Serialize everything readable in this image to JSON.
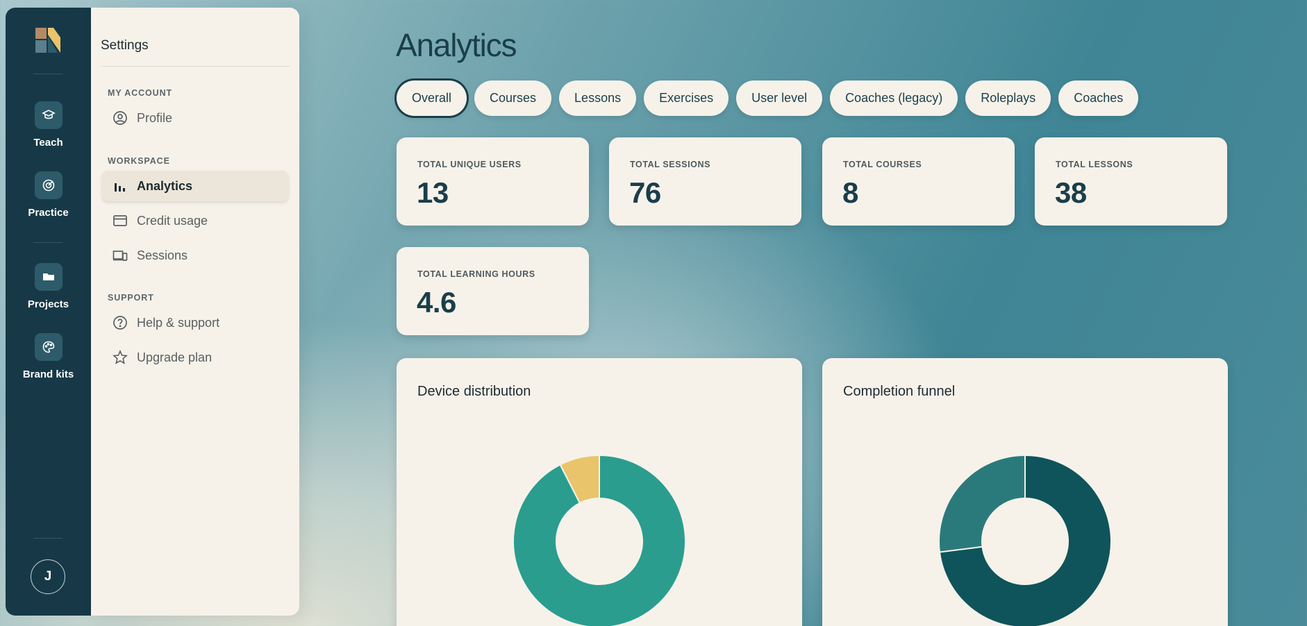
{
  "rail": {
    "items": [
      {
        "label": "Teach",
        "icon": "graduation-cap-icon"
      },
      {
        "label": "Practice",
        "icon": "target-icon"
      },
      {
        "label": "Projects",
        "icon": "folder-icon"
      },
      {
        "label": "Brand kits",
        "icon": "palette-icon"
      }
    ],
    "avatar_initial": "J"
  },
  "settings": {
    "title": "Settings",
    "sections": {
      "my_account": "MY ACCOUNT",
      "workspace": "WORKSPACE",
      "support": "SUPPORT"
    },
    "items": {
      "profile": "Profile",
      "analytics": "Analytics",
      "credit_usage": "Credit usage",
      "sessions": "Sessions",
      "help": "Help & support",
      "upgrade": "Upgrade plan"
    },
    "active": "Analytics"
  },
  "main": {
    "title": "Analytics",
    "tabs": [
      "Overall",
      "Courses",
      "Lessons",
      "Exercises",
      "User level",
      "Coaches (legacy)",
      "Roleplays",
      "Coaches"
    ],
    "active_tab": "Overall",
    "stats": [
      {
        "label": "TOTAL UNIQUE USERS",
        "value": "13"
      },
      {
        "label": "TOTAL SESSIONS",
        "value": "76"
      },
      {
        "label": "TOTAL COURSES",
        "value": "8"
      },
      {
        "label": "TOTAL LESSONS",
        "value": "38"
      },
      {
        "label": "TOTAL LEARNING HOURS",
        "value": "4.6"
      }
    ],
    "cards": {
      "device_title": "Device distribution",
      "funnel_title": "Completion funnel"
    }
  },
  "colors": {
    "rail_bg": "#173947",
    "panel_bg": "#f6f2ea",
    "accent_dark": "#1a3e4a",
    "teal": "#2a9d8f",
    "gold": "#e9c46a",
    "deep_teal": "#0e545a",
    "mid_teal": "#2a7a7c"
  },
  "chart_data": [
    {
      "type": "pie",
      "title": "Device distribution",
      "slices": [
        {
          "value": 92.5,
          "color": "#2a9d8f"
        },
        {
          "value": 7.5,
          "color": "#e9c46a"
        }
      ]
    },
    {
      "type": "pie",
      "title": "Completion funnel",
      "slices": [
        {
          "value": 73,
          "color": "#0e545a"
        },
        {
          "value": 27,
          "color": "#2a7a7c"
        }
      ]
    }
  ]
}
